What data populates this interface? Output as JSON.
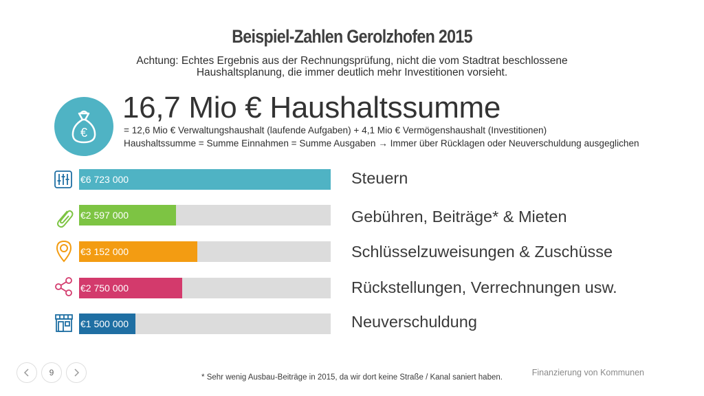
{
  "slide": {
    "title": "Beispiel-Zahlen Gerolzhofen 2015",
    "subtitle": "Achtung: Echtes Ergebnis aus der Rechnungsprüfung, nicht die vom Stadtrat beschlossene Haushaltsplanung, die immer deutlich mehr Investitionen vorsieht.",
    "headline": "16,7 Mio € Haushaltssumme",
    "detail_line1": "= 12,6 Mio € Verwaltungshaushalt (laufende Aufgaben) + 4,1 Mio € Vermögenshaushalt (Investitionen)",
    "detail_line2": "Haushaltssumme = Summe Einnahmen = Summe Ausgaben",
    "detail_arrow": "→",
    "detail_line2b": "Immer über Rücklagen oder Neuverschuldung ausgeglichen",
    "money_icon": "money-bag-icon"
  },
  "rows": [
    {
      "value_text": "€6 723 000",
      "label": "Steuern",
      "fraction": 1.0,
      "color": "#4fb3c4",
      "icon": "sliders-icon"
    },
    {
      "value_text": "€2 597 000",
      "label": "Gebühren, Beiträge* & Mieten",
      "fraction": 0.386,
      "color": "#7dc443",
      "icon": "paperclip-icon"
    },
    {
      "value_text": "€3 152 000",
      "label": "Schlüsselzuweisungen & Zuschüsse",
      "fraction": 0.469,
      "color": "#f39c12",
      "icon": "map-pin-icon"
    },
    {
      "value_text": "€2 750 000",
      "label": "Rückstellungen, Verrechnungen usw.",
      "fraction": 0.409,
      "color": "#d33a6c",
      "icon": "share-icon"
    },
    {
      "value_text": "€1 500 000",
      "label": "Neuverschuldung",
      "fraction": 0.223,
      "color": "#1f6fa3",
      "icon": "storefront-icon"
    }
  ],
  "footer": {
    "page_number": "9",
    "section": "Finanzierung von Kommunen",
    "footnote": "* Sehr wenig Ausbau-Beiträge in 2015, da wir dort keine Straße / Kanal saniert haben."
  },
  "colors": {
    "teal": "#4fb3c4",
    "green": "#7dc443",
    "orange": "#f39c12",
    "pink": "#d33a6c",
    "blue": "#1f6fa3",
    "track": "#dcdcdc"
  }
}
